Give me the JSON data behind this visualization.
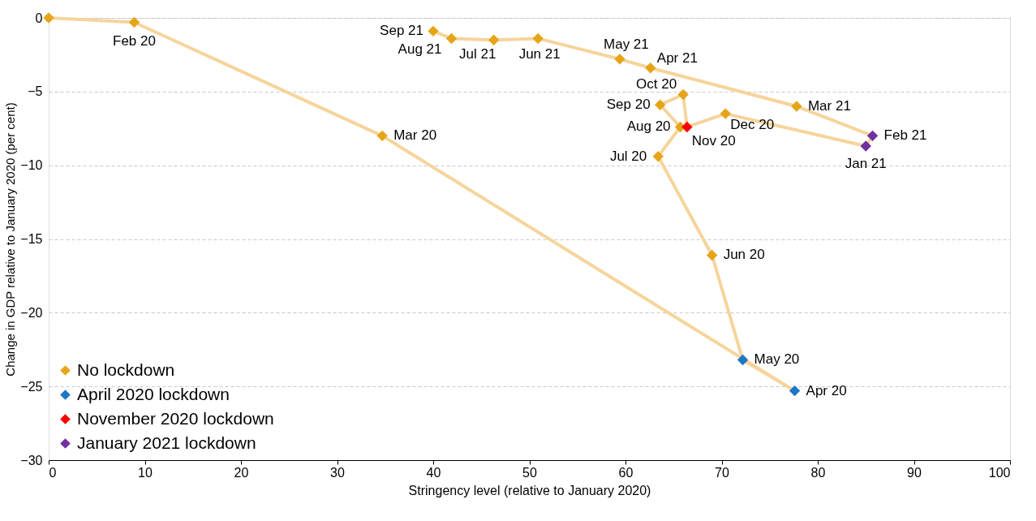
{
  "chart_data": {
    "type": "line",
    "xlabel": "Stringency level (relative to January 2020)",
    "ylabel": "Change in GDP relative to January 2020  (per cent)",
    "xlim": [
      0,
      100
    ],
    "xticks": [
      0,
      10,
      20,
      30,
      40,
      50,
      60,
      70,
      80,
      90,
      100
    ],
    "ylim": [
      -30,
      0
    ],
    "yticks": [
      -30,
      -25,
      -20,
      -15,
      -10,
      -5,
      0
    ],
    "grid": "y",
    "legend": "bottom left",
    "series": [
      {
        "color": "#f6d49b",
        "x": [
          0,
          8.9,
          34.7,
          77.6,
          72.2,
          69.0,
          63.4,
          65.7,
          63.6,
          66.0,
          66.4,
          70.4,
          85.0,
          85.7,
          77.8,
          62.6,
          59.4,
          50.9,
          46.3,
          41.9,
          40.0
        ],
        "values": [
          0,
          -0.3,
          -8.0,
          -25.3,
          -23.2,
          -16.1,
          -9.4,
          -7.4,
          -5.9,
          -5.2,
          -7.4,
          -6.5,
          -8.7,
          -8.0,
          -6.0,
          -3.4,
          -2.8,
          -1.4,
          -1.5,
          -1.4,
          -0.9
        ]
      },
      {
        "type": "scatter",
        "marker": "diamond",
        "name": "No lockdown",
        "color": "#e6a519",
        "x": [
          0,
          8.9,
          34.7,
          69.0,
          63.4,
          65.7,
          63.6,
          66.0,
          70.4,
          77.8,
          62.6,
          59.4,
          50.9,
          46.3,
          41.9,
          40.0
        ],
        "values": [
          0,
          -0.3,
          -8.0,
          -16.1,
          -9.4,
          -7.4,
          -5.9,
          -5.2,
          -6.5,
          -6.0,
          -3.4,
          -2.8,
          -1.4,
          -1.5,
          -1.4,
          -0.9
        ]
      },
      {
        "type": "scatter",
        "marker": "diamond",
        "name": "April 2020 lockdown",
        "color": "#1f77c4",
        "x": [
          77.6,
          72.2
        ],
        "values": [
          -25.3,
          -23.2
        ]
      },
      {
        "type": "scatter",
        "marker": "diamond",
        "name": "November 2020 lockdown",
        "color": "#ff0000",
        "x": [
          66.4
        ],
        "values": [
          -7.4
        ]
      },
      {
        "type": "scatter",
        "marker": "diamond",
        "name": "January 2021 lockdown",
        "color": "#7030a0",
        "x": [
          85.0,
          85.7
        ],
        "values": [
          -8.7,
          -8.0
        ]
      }
    ],
    "annotations": [
      {
        "text": "Feb 20",
        "x": 8.9,
        "y": -0.3
      },
      {
        "text": "Mar 20",
        "x": 34.7,
        "y": -8.0
      },
      {
        "text": "Apr 20",
        "x": 77.6,
        "y": -25.3
      },
      {
        "text": "May 20",
        "x": 72.2,
        "y": -23.2
      },
      {
        "text": "Jun 20",
        "x": 69.0,
        "y": -16.1
      },
      {
        "text": "Jul 20",
        "x": 63.4,
        "y": -9.4
      },
      {
        "text": "Aug 20",
        "x": 65.7,
        "y": -7.4
      },
      {
        "text": "Sep 20",
        "x": 63.6,
        "y": -5.9
      },
      {
        "text": "Oct 20",
        "x": 66.0,
        "y": -5.2
      },
      {
        "text": "Nov 20",
        "x": 66.4,
        "y": -7.4
      },
      {
        "text": "Dec 20",
        "x": 70.4,
        "y": -6.5
      },
      {
        "text": "Jan 21",
        "x": 85.0,
        "y": -8.7
      },
      {
        "text": "Feb 21",
        "x": 85.7,
        "y": -8.0
      },
      {
        "text": "Mar 21",
        "x": 77.8,
        "y": -6.0
      },
      {
        "text": "Apr 21",
        "x": 62.6,
        "y": -3.4
      },
      {
        "text": "May 21",
        "x": 59.4,
        "y": -2.8
      },
      {
        "text": "Jun 21",
        "x": 50.9,
        "y": -1.4
      },
      {
        "text": "Jul 21",
        "x": 46.3,
        "y": -1.5
      },
      {
        "text": "Aug 21",
        "x": 41.9,
        "y": -1.4
      },
      {
        "text": "Sep 21",
        "x": 40.0,
        "y": -0.9
      }
    ]
  }
}
